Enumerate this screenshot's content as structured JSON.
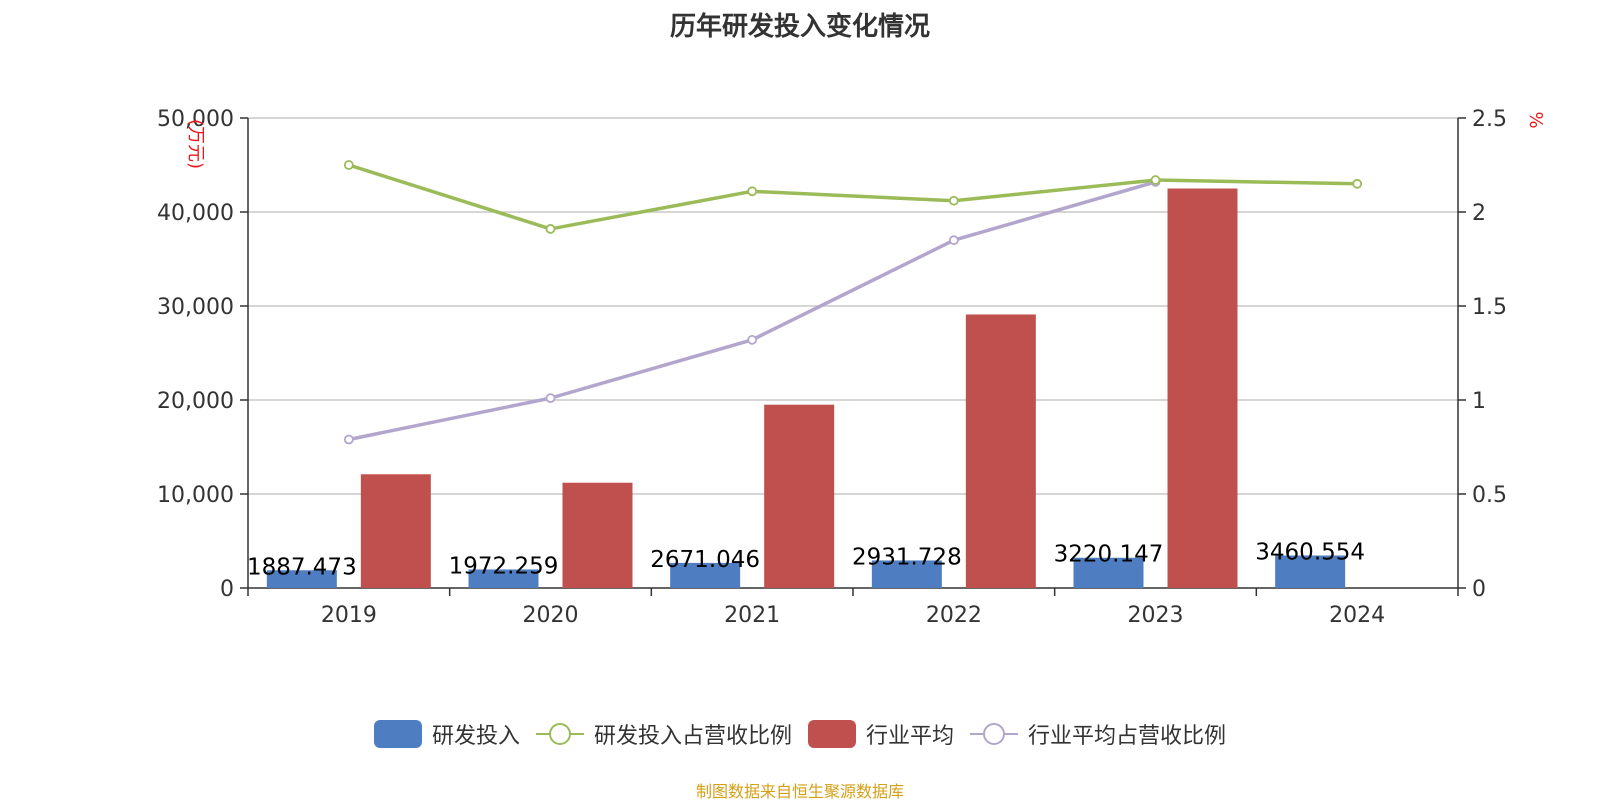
{
  "title": "历年研发投入变化情况",
  "source": "制图数据来自恒生聚源数据库",
  "colors": {
    "rd_bar": "#4e7ec1",
    "rd_ratio_line": "#9bbb59",
    "industry_bar": "#c0504d",
    "industry_ratio_line": "#b3a6cd",
    "axis": "#333333",
    "grid": "#c8c8c8",
    "unit_label": "#e8191a"
  },
  "legend": [
    {
      "label": "研发投入",
      "kind": "bar",
      "color": "#4e7ec1"
    },
    {
      "label": "研发投入占营收比例",
      "kind": "line",
      "color": "#9bbb59"
    },
    {
      "label": "行业平均",
      "kind": "bar",
      "color": "#c0504d"
    },
    {
      "label": "行业平均占营收比例",
      "kind": "line",
      "color": "#b3a6cd"
    }
  ],
  "chart_data": {
    "type": "bar",
    "title": "历年研发投入变化情况",
    "categories": [
      "2019",
      "2020",
      "2021",
      "2022",
      "2023",
      "2024"
    ],
    "y_left": {
      "label": "万元",
      "ticks": [
        "0",
        "10,000",
        "20,000",
        "30,000",
        "40,000",
        "50,000"
      ],
      "range": [
        0,
        50000
      ]
    },
    "y_right": {
      "label": "%",
      "ticks": [
        "0",
        "0.5",
        "1",
        "1.5",
        "2",
        "2.5"
      ],
      "range": [
        0,
        2.5
      ]
    },
    "grid": true,
    "legend_position": "bottom",
    "series": [
      {
        "name": "研发投入",
        "type": "bar",
        "axis": "left",
        "values": [
          1887.473,
          1972.259,
          2671.046,
          2931.728,
          3220.147,
          3460.554
        ],
        "labels": [
          "1887.473",
          "1972.259",
          "2671.046",
          "2931.728",
          "3220.147",
          "3460.554"
        ]
      },
      {
        "name": "行业平均",
        "type": "bar",
        "axis": "left",
        "values": [
          12100,
          11200,
          19500,
          29100,
          42500,
          null
        ]
      },
      {
        "name": "研发投入占营收比例",
        "type": "line",
        "axis": "right",
        "values": [
          2.25,
          1.91,
          2.11,
          2.06,
          2.17,
          2.15
        ]
      },
      {
        "name": "行业平均占营收比例",
        "type": "line",
        "axis": "right",
        "values": [
          0.79,
          1.01,
          1.32,
          1.85,
          2.16,
          null
        ]
      }
    ]
  }
}
